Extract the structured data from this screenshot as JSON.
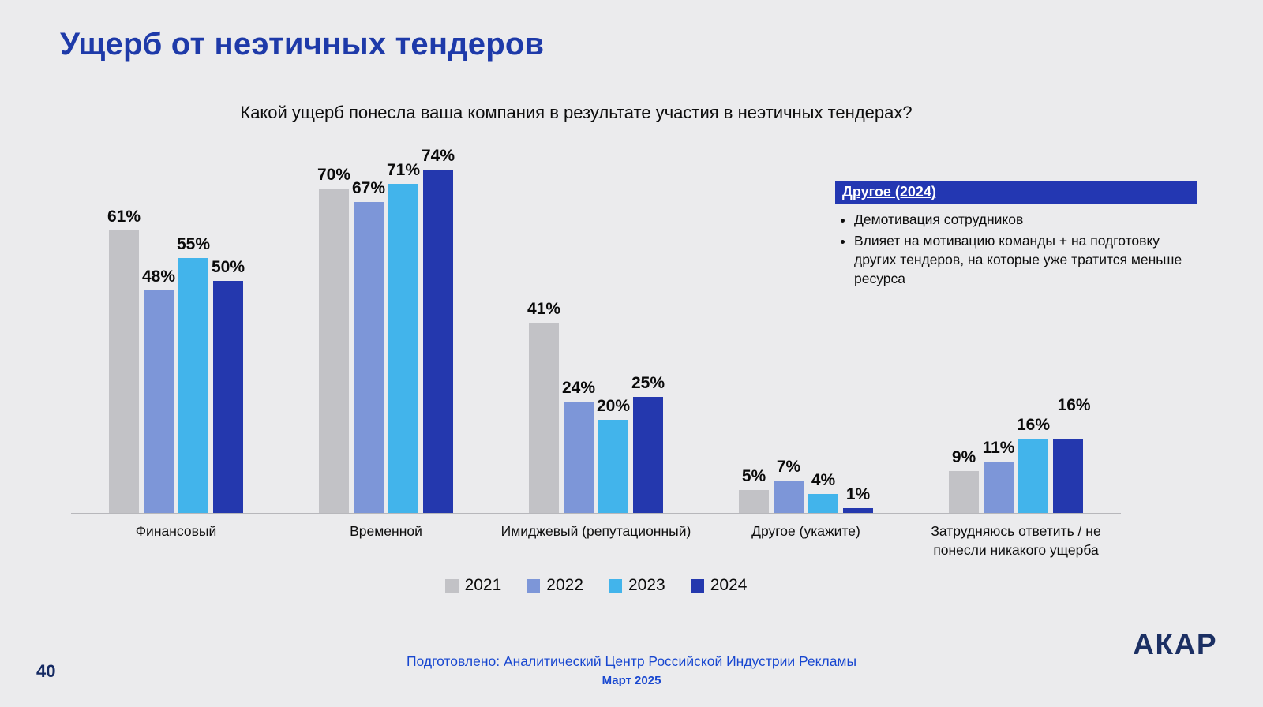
{
  "slide": {
    "title": "Ущерб от неэтичных тендеров",
    "question": "Какой ущерб понесла ваша компания в результате участия в неэтичных тендерах?",
    "page_number": "40",
    "footer_line1": "Подготовлено: Аналитический Центр Российской Индустрии Рекламы",
    "footer_line2": "Март 2025",
    "logo_text": "АКАР"
  },
  "callout": {
    "title": "Другое (2024)",
    "bullets": [
      "Демотивация сотрудников",
      "Влияет на мотивацию команды + на подготовку других тендеров, на которые уже тратится меньше ресурса"
    ]
  },
  "chart_data": {
    "type": "bar",
    "title": "Какой ущерб понесла ваша компания в результате участия в неэтичных тендерах?",
    "categories": [
      "Финансовый",
      "Временной",
      "Имиджевый (репутационный)",
      "Другое (укажите)",
      "Затрудняюсь ответить / не понесли никакого ущерба"
    ],
    "series": [
      {
        "name": "2021",
        "color": "#c2c2c6",
        "values": [
          61,
          70,
          41,
          5,
          9
        ]
      },
      {
        "name": "2022",
        "color": "#7d96d8",
        "values": [
          48,
          67,
          24,
          7,
          11
        ]
      },
      {
        "name": "2023",
        "color": "#42b4eb",
        "values": [
          55,
          71,
          20,
          4,
          16
        ]
      },
      {
        "name": "2024",
        "color": "#2438ae",
        "values": [
          50,
          74,
          25,
          1,
          16
        ]
      }
    ],
    "value_suffix": "%",
    "xlabel": "",
    "ylabel": "",
    "ylim": [
      0,
      80
    ],
    "grid": false,
    "legend_position": "bottom"
  }
}
